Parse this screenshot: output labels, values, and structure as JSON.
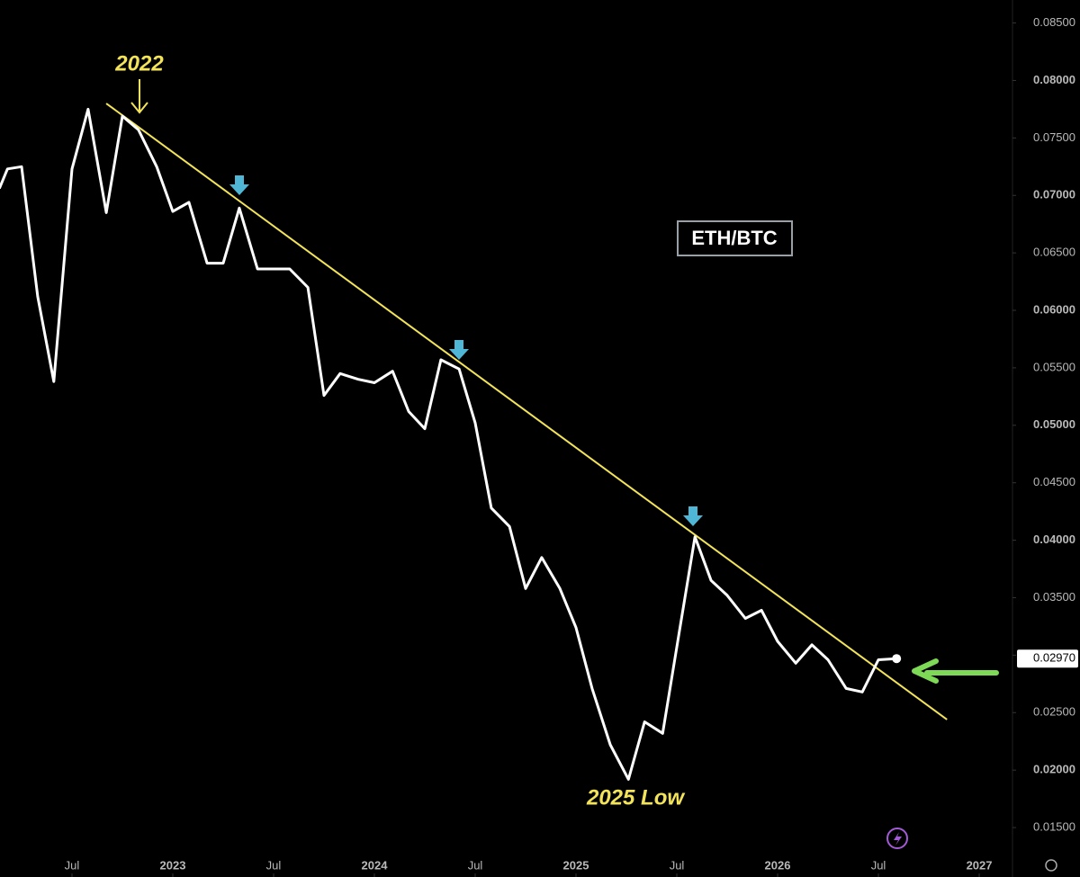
{
  "chart_data": {
    "type": "line",
    "title": "ETH/BTC",
    "annotations": [
      "2022",
      "2025 Low"
    ],
    "x": [
      2022.14,
      2022.18,
      2022.25,
      2022.33,
      2022.41,
      2022.5,
      2022.58,
      2022.67,
      2022.75,
      2022.83,
      2022.92,
      2023.0,
      2023.08,
      2023.17,
      2023.25,
      2023.33,
      2023.42,
      2023.5,
      2023.58,
      2023.67,
      2023.75,
      2023.83,
      2023.92,
      2024.0,
      2024.09,
      2024.17,
      2024.25,
      2024.33,
      2024.42,
      2024.5,
      2024.58,
      2024.67,
      2024.75,
      2024.83,
      2024.92,
      2025.0,
      2025.08,
      2025.17,
      2025.26,
      2025.34,
      2025.43,
      2025.51,
      2025.59,
      2025.67,
      2025.75,
      2025.84,
      2025.92,
      2026.0,
      2026.09,
      2026.17,
      2026.25,
      2026.34,
      2026.42,
      2026.5,
      2026.59
    ],
    "series": [
      {
        "name": "ETH/BTC",
        "color": "#ffffff",
        "values": [
          0.0706,
          0.0723,
          0.0725,
          0.0612,
          0.0538,
          0.0723,
          0.0775,
          0.0685,
          0.0769,
          0.0757,
          0.0725,
          0.0686,
          0.0694,
          0.0641,
          0.0641,
          0.0689,
          0.0636,
          0.0636,
          0.0636,
          0.062,
          0.0526,
          0.0545,
          0.054,
          0.0537,
          0.0547,
          0.0512,
          0.0497,
          0.0557,
          0.0549,
          0.0502,
          0.0428,
          0.0412,
          0.0358,
          0.0385,
          0.0358,
          0.0324,
          0.0271,
          0.0222,
          0.0192,
          0.0242,
          0.0232,
          0.0318,
          0.0403,
          0.0365,
          0.0352,
          0.0332,
          0.0339,
          0.0312,
          0.0293,
          0.0309,
          0.0296,
          0.0271,
          0.0268,
          0.0296,
          0.0297
        ],
        "last_label": "0.02970"
      }
    ],
    "trendline": {
      "color": "#f2e35a",
      "x": [
        2022.67,
        2026.84
      ],
      "values": [
        0.078,
        0.0244
      ]
    },
    "xlim": [
      2022.143,
      2027.165
    ],
    "xticks": [
      {
        "value": 2022.5,
        "label": "Jul"
      },
      2023,
      {
        "value": 2023.5,
        "label": "Jul"
      },
      2024,
      {
        "value": 2024.5,
        "label": "Jul"
      },
      2025,
      {
        "value": 2025.5,
        "label": "Jul"
      },
      2026,
      {
        "value": 2026.5,
        "label": "Jul"
      },
      2027
    ],
    "ylim": [
      0.0107,
      0.087
    ],
    "yticks": [
      {
        "value": 0.015,
        "label": "0.01500"
      },
      {
        "value": 0.02,
        "label": "0.02000"
      },
      {
        "value": 0.025,
        "label": "0.02500"
      },
      {
        "value": 0.03,
        "label": "0.03000"
      },
      {
        "value": 0.035,
        "label": "0.03500"
      },
      {
        "value": 0.04,
        "label": "0.04000"
      },
      {
        "value": 0.045,
        "label": "0.04500"
      },
      {
        "value": 0.05,
        "label": "0.05000"
      },
      {
        "value": 0.055,
        "label": "0.05500"
      },
      {
        "value": 0.06,
        "label": "0.06000"
      },
      {
        "value": 0.065,
        "label": "0.06500"
      },
      {
        "value": 0.07,
        "label": "0.07000"
      },
      {
        "value": 0.075,
        "label": "0.07500"
      },
      {
        "value": 0.08,
        "label": "0.08000"
      },
      {
        "value": 0.085,
        "label": "0.08500"
      }
    ],
    "grid": false
  }
}
